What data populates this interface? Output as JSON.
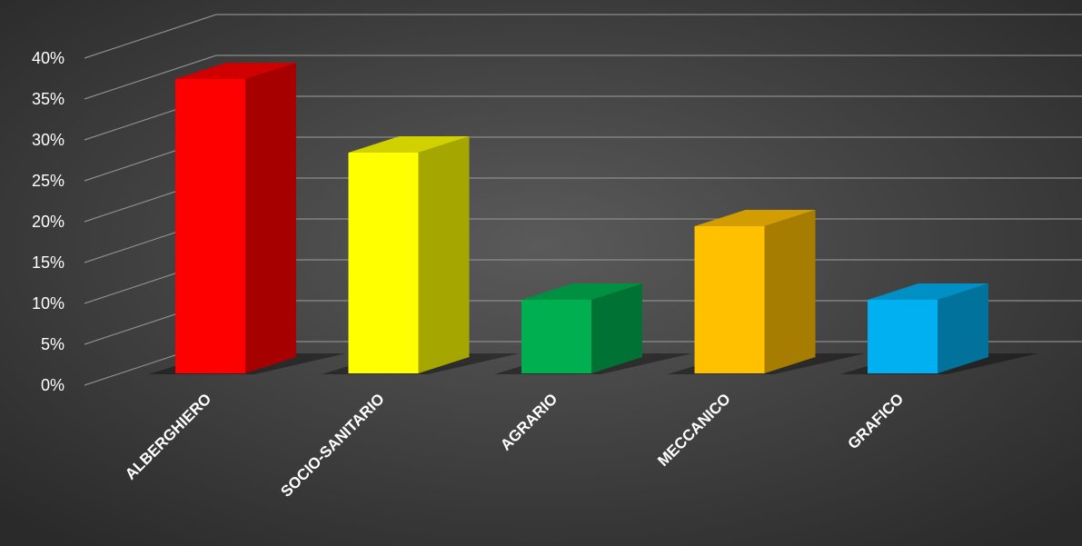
{
  "chart_data": {
    "type": "bar",
    "categories": [
      "ALBERGHIERO",
      "SOCIO-SANITARIO",
      "AGRARIO",
      "MECCANICO",
      "GRAFICO"
    ],
    "values": [
      36,
      27,
      9,
      18,
      9
    ],
    "colors": [
      "#ff0000",
      "#ffff00",
      "#00b050",
      "#ffc000",
      "#00b0f0"
    ],
    "y_ticks": [
      "0%",
      "5%",
      "10%",
      "15%",
      "20%",
      "25%",
      "30%",
      "35%",
      "40%"
    ],
    "ylim": [
      0,
      40
    ],
    "unit": "%",
    "grid": true,
    "style": "3d-column",
    "background": "#444444",
    "legend": "none"
  }
}
